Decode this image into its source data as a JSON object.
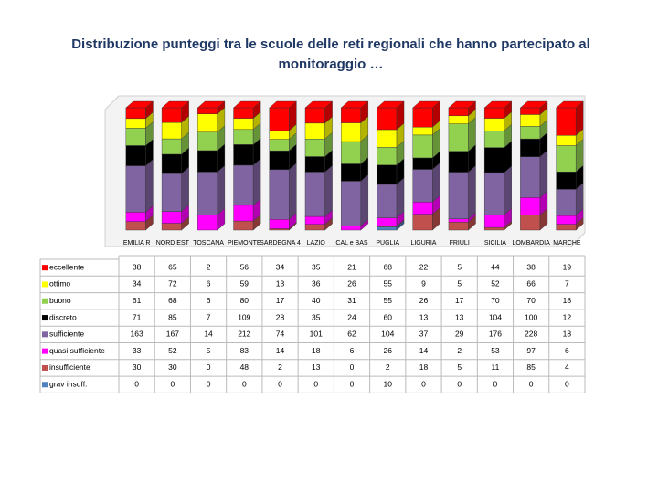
{
  "chart_data": {
    "type": "stacked-percent-bar",
    "title": "Distribuzione  punteggi tra le scuole delle reti regionali che hanno partecipato al monitoraggio …",
    "categories": [
      "EMILIA R",
      "NORD EST",
      "TOSCANA",
      "PIEMONTE",
      "SARDEGNA 4",
      "LAZIO",
      "CAL e BAS",
      "PUGLIA",
      "LIGURIA",
      "FRIULI",
      "SICILIA",
      "LOMBARDIA",
      "MARCHE"
    ],
    "series": [
      {
        "name": "eccellente",
        "color": "#ff0000",
        "values": [
          38,
          65,
          2,
          56,
          34,
          35,
          21,
          68,
          22,
          5,
          44,
          38,
          19
        ]
      },
      {
        "name": "ottimo",
        "color": "#ffff00",
        "values": [
          34,
          72,
          6,
          59,
          13,
          36,
          26,
          55,
          9,
          5,
          52,
          66,
          7
        ]
      },
      {
        "name": "buono",
        "color": "#92d050",
        "values": [
          61,
          68,
          6,
          80,
          17,
          40,
          31,
          55,
          26,
          17,
          70,
          70,
          18
        ]
      },
      {
        "name": "discreto",
        "color": "#000000",
        "values": [
          71,
          85,
          7,
          109,
          28,
          35,
          24,
          60,
          13,
          13,
          104,
          100,
          12
        ]
      },
      {
        "name": "sufficiente",
        "color": "#8064a2",
        "values": [
          163,
          167,
          14,
          212,
          74,
          101,
          62,
          104,
          37,
          29,
          176,
          228,
          18
        ]
      },
      {
        "name": "quasi sufficiente",
        "color": "#ff00ff",
        "values": [
          33,
          52,
          5,
          83,
          14,
          18,
          6,
          26,
          14,
          2,
          53,
          97,
          6
        ]
      },
      {
        "name": "insufficiente",
        "color": "#c0504d",
        "values": [
          30,
          30,
          0,
          48,
          2,
          13,
          0,
          2,
          18,
          5,
          11,
          85,
          4
        ]
      },
      {
        "name": "grav insuff.",
        "color": "#4f81bd",
        "values": [
          0,
          0,
          0,
          0,
          0,
          0,
          0,
          10,
          0,
          0,
          0,
          0,
          0
        ]
      }
    ]
  }
}
